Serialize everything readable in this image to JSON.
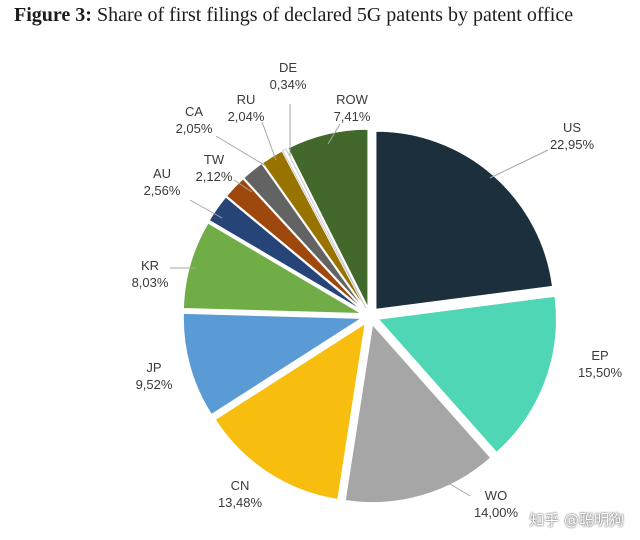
{
  "title": {
    "label": "Figure 3:",
    "text": "Share of first filings of declared 5G patents by patent office"
  },
  "watermark": "知乎 @聪明狗",
  "chart_data": {
    "type": "pie",
    "start_angle_deg": 0,
    "direction": "clockwise",
    "slices": [
      {
        "name": "US",
        "value": 22.95,
        "value_label": "22,95%",
        "color": "#1b2f3d"
      },
      {
        "name": "EP",
        "value": 15.5,
        "value_label": "15,50%",
        "color": "#4fd6b5"
      },
      {
        "name": "WO",
        "value": 14.0,
        "value_label": "14,00%",
        "color": "#a6a6a6"
      },
      {
        "name": "CN",
        "value": 13.48,
        "value_label": "13,48%",
        "color": "#f7be10"
      },
      {
        "name": "JP",
        "value": 9.52,
        "value_label": "9,52%",
        "color": "#5b9bd5"
      },
      {
        "name": "KR",
        "value": 8.03,
        "value_label": "8,03%",
        "color": "#70ad47"
      },
      {
        "name": "AU",
        "value": 2.56,
        "value_label": "2,56%",
        "color": "#264478"
      },
      {
        "name": "TW",
        "value": 2.12,
        "value_label": "2,12%",
        "color": "#9e480e"
      },
      {
        "name": "CA",
        "value": 2.05,
        "value_label": "2,05%",
        "color": "#636363"
      },
      {
        "name": "RU",
        "value": 2.04,
        "value_label": "2,04%",
        "color": "#997300"
      },
      {
        "name": "DE",
        "value": 0.34,
        "value_label": "0,34%",
        "color": "#ffffff"
      },
      {
        "name": "ROW",
        "value": 7.41,
        "value_label": "7,41%",
        "color": "#43682b"
      }
    ]
  }
}
